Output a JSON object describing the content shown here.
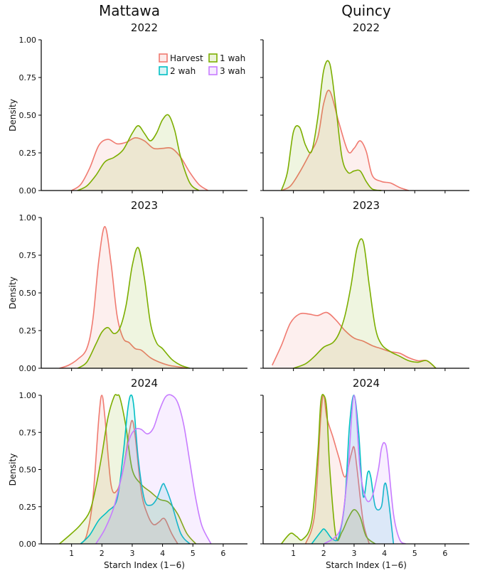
{
  "columns": [
    "Mattawa",
    "Quincy"
  ],
  "colors": {
    "Harvest": "#f07a70",
    "1 wah": "#7cae00",
    "2 wah": "#00bfc4",
    "3 wah": "#c77cff"
  },
  "legend": {
    "placement": "top-right of first panel",
    "entries": [
      "Harvest",
      "1 wah",
      "2 wah",
      "3 wah"
    ]
  },
  "chart_data": [
    {
      "type": "area",
      "title": "2022",
      "column": "Mattawa",
      "xlabel": "",
      "ylabel": "Density",
      "xlim": [
        0,
        6.8
      ],
      "ylim": [
        0,
        1
      ],
      "yticks": [
        "0.00",
        "0.25",
        "0.50",
        "0.75",
        "1.00"
      ],
      "xticks": [],
      "series": [
        {
          "name": "Harvest",
          "x": [
            1.0,
            1.3,
            1.6,
            1.9,
            2.2,
            2.5,
            2.8,
            3.1,
            3.4,
            3.7,
            4.0,
            4.3,
            4.6,
            4.9,
            5.2,
            5.5
          ],
          "y": [
            0.0,
            0.04,
            0.15,
            0.3,
            0.34,
            0.31,
            0.32,
            0.35,
            0.33,
            0.28,
            0.28,
            0.28,
            0.22,
            0.12,
            0.04,
            0.0
          ]
        },
        {
          "name": "1 wah",
          "x": [
            1.2,
            1.5,
            1.8,
            2.1,
            2.4,
            2.7,
            3.0,
            3.2,
            3.4,
            3.6,
            3.8,
            4.0,
            4.2,
            4.4,
            4.6,
            4.9,
            5.2
          ],
          "y": [
            0.0,
            0.03,
            0.1,
            0.19,
            0.22,
            0.27,
            0.38,
            0.43,
            0.38,
            0.33,
            0.38,
            0.47,
            0.5,
            0.4,
            0.22,
            0.05,
            0.0
          ]
        }
      ]
    },
    {
      "type": "area",
      "title": "2022",
      "column": "Quincy",
      "xlabel": "",
      "ylabel": "",
      "xlim": [
        0,
        6.8
      ],
      "ylim": [
        0,
        1
      ],
      "yticks": [],
      "xticks": [],
      "series": [
        {
          "name": "Harvest",
          "x": [
            0.6,
            0.9,
            1.2,
            1.5,
            1.8,
            2.0,
            2.2,
            2.5,
            2.8,
            3.0,
            3.2,
            3.4,
            3.6,
            3.9,
            4.2,
            4.5,
            4.8
          ],
          "y": [
            0.0,
            0.03,
            0.12,
            0.23,
            0.35,
            0.58,
            0.66,
            0.45,
            0.26,
            0.28,
            0.33,
            0.26,
            0.1,
            0.06,
            0.05,
            0.02,
            0.0
          ]
        },
        {
          "name": "1 wah",
          "x": [
            0.6,
            0.8,
            1.0,
            1.2,
            1.4,
            1.6,
            1.8,
            2.0,
            2.2,
            2.4,
            2.6,
            2.8,
            3.0,
            3.2,
            3.4,
            3.6,
            3.9
          ],
          "y": [
            0.0,
            0.12,
            0.39,
            0.42,
            0.3,
            0.26,
            0.48,
            0.8,
            0.84,
            0.55,
            0.22,
            0.12,
            0.13,
            0.13,
            0.06,
            0.01,
            0.0
          ]
        }
      ]
    },
    {
      "type": "area",
      "title": "2023",
      "column": "Mattawa",
      "xlabel": "",
      "ylabel": "Density",
      "xlim": [
        0,
        6.8
      ],
      "ylim": [
        0,
        1
      ],
      "yticks": [
        "0.00",
        "0.25",
        "0.50",
        "0.75",
        "1.00"
      ],
      "xticks": [],
      "series": [
        {
          "name": "Harvest",
          "x": [
            0.6,
            0.9,
            1.2,
            1.5,
            1.7,
            1.9,
            2.1,
            2.3,
            2.5,
            2.7,
            2.9,
            3.1,
            3.3,
            3.6,
            3.9,
            4.2,
            4.5,
            4.8
          ],
          "y": [
            0.0,
            0.02,
            0.06,
            0.13,
            0.32,
            0.72,
            0.94,
            0.7,
            0.35,
            0.2,
            0.17,
            0.13,
            0.12,
            0.07,
            0.04,
            0.02,
            0.01,
            0.0
          ]
        },
        {
          "name": "1 wah",
          "x": [
            1.2,
            1.5,
            1.8,
            2.0,
            2.2,
            2.4,
            2.6,
            2.8,
            3.0,
            3.2,
            3.4,
            3.6,
            3.8,
            4.0,
            4.3,
            4.6,
            4.9
          ],
          "y": [
            0.0,
            0.04,
            0.16,
            0.24,
            0.27,
            0.23,
            0.27,
            0.42,
            0.68,
            0.8,
            0.6,
            0.3,
            0.17,
            0.13,
            0.06,
            0.02,
            0.0
          ]
        }
      ]
    },
    {
      "type": "area",
      "title": "2023",
      "column": "Quincy",
      "xlabel": "",
      "ylabel": "",
      "xlim": [
        0,
        6.8
      ],
      "ylim": [
        0,
        1
      ],
      "yticks": [],
      "xticks": [],
      "series": [
        {
          "name": "Harvest",
          "x": [
            0.3,
            0.6,
            0.9,
            1.2,
            1.5,
            1.8,
            2.1,
            2.4,
            2.7,
            3.0,
            3.3,
            3.6,
            3.9,
            4.2,
            4.5,
            4.8,
            5.1,
            5.4,
            5.7
          ],
          "y": [
            0.02,
            0.15,
            0.3,
            0.36,
            0.36,
            0.35,
            0.37,
            0.32,
            0.25,
            0.2,
            0.18,
            0.15,
            0.13,
            0.11,
            0.1,
            0.07,
            0.05,
            0.05,
            0.0
          ]
        },
        {
          "name": "1 wah",
          "x": [
            1.0,
            1.4,
            1.7,
            2.0,
            2.3,
            2.5,
            2.7,
            2.9,
            3.1,
            3.3,
            3.5,
            3.7,
            3.9,
            4.2,
            4.5,
            4.8,
            5.1,
            5.4,
            5.7
          ],
          "y": [
            0.0,
            0.03,
            0.08,
            0.14,
            0.17,
            0.23,
            0.35,
            0.55,
            0.8,
            0.84,
            0.55,
            0.27,
            0.16,
            0.11,
            0.08,
            0.05,
            0.04,
            0.05,
            0.0
          ]
        }
      ]
    },
    {
      "type": "area",
      "title": "2024",
      "column": "Mattawa",
      "xlabel": "Starch Index (1−6)",
      "ylabel": "Density",
      "xlim": [
        0,
        6.8
      ],
      "ylim": [
        0,
        1
      ],
      "yticks": [
        "0.00",
        "0.25",
        "0.50",
        "0.75",
        "1.00"
      ],
      "xticks": [
        "1",
        "2",
        "3",
        "4",
        "5",
        "6"
      ],
      "series": [
        {
          "name": "Harvest",
          "x": [
            1.3,
            1.5,
            1.7,
            1.9,
            2.0,
            2.1,
            2.3,
            2.5,
            2.7,
            2.9,
            3.0,
            3.1,
            3.3,
            3.5,
            3.7,
            3.9,
            4.0,
            4.1,
            4.3,
            4.5
          ],
          "y": [
            0.0,
            0.06,
            0.3,
            0.85,
            1.0,
            0.85,
            0.4,
            0.36,
            0.5,
            0.75,
            0.83,
            0.72,
            0.35,
            0.2,
            0.13,
            0.15,
            0.17,
            0.16,
            0.07,
            0.0
          ]
        },
        {
          "name": "1 wah",
          "x": [
            0.6,
            1.0,
            1.3,
            1.6,
            1.8,
            2.0,
            2.2,
            2.4,
            2.5,
            2.6,
            2.8,
            3.0,
            3.3,
            3.6,
            3.9,
            4.2,
            4.5,
            4.8,
            5.1
          ],
          "y": [
            0.0,
            0.07,
            0.13,
            0.22,
            0.38,
            0.6,
            0.85,
            0.99,
            1.0,
            0.98,
            0.78,
            0.5,
            0.4,
            0.35,
            0.3,
            0.28,
            0.2,
            0.07,
            0.0
          ]
        },
        {
          "name": "2 wah",
          "x": [
            1.3,
            1.6,
            1.9,
            2.2,
            2.5,
            2.7,
            2.85,
            2.95,
            3.05,
            3.2,
            3.4,
            3.6,
            3.8,
            4.0,
            4.1,
            4.3,
            4.6,
            4.9
          ],
          "y": [
            0.0,
            0.06,
            0.16,
            0.22,
            0.3,
            0.6,
            0.9,
            1.0,
            0.93,
            0.57,
            0.3,
            0.26,
            0.3,
            0.4,
            0.38,
            0.27,
            0.07,
            0.0
          ]
        },
        {
          "name": "3 wah",
          "x": [
            1.8,
            2.1,
            2.4,
            2.7,
            2.9,
            3.1,
            3.3,
            3.5,
            3.7,
            3.9,
            4.1,
            4.3,
            4.5,
            4.7,
            4.9,
            5.1,
            5.3,
            5.6
          ],
          "y": [
            0.0,
            0.1,
            0.25,
            0.5,
            0.7,
            0.77,
            0.77,
            0.74,
            0.78,
            0.9,
            0.99,
            1.0,
            0.95,
            0.8,
            0.55,
            0.3,
            0.12,
            0.0
          ]
        }
      ]
    },
    {
      "type": "area",
      "title": "2024",
      "column": "Quincy",
      "xlabel": "Starch Index (1−6)",
      "ylabel": "",
      "xlim": [
        0,
        6.8
      ],
      "ylim": [
        0,
        1
      ],
      "yticks": [],
      "xticks": [
        "1",
        "2",
        "3",
        "4",
        "5",
        "6"
      ],
      "series": [
        {
          "name": "Harvest",
          "x": [
            1.4,
            1.7,
            1.9,
            2.0,
            2.1,
            2.3,
            2.5,
            2.7,
            2.9,
            3.0,
            3.1,
            3.3,
            3.5
          ],
          "y": [
            0.0,
            0.2,
            0.85,
            1.0,
            0.85,
            0.72,
            0.58,
            0.45,
            0.6,
            0.65,
            0.5,
            0.15,
            0.0
          ]
        },
        {
          "name": "1 wah",
          "x": [
            0.6,
            0.9,
            1.1,
            1.3,
            1.6,
            1.8,
            1.9,
            2.0,
            2.1,
            2.2,
            2.4,
            2.6,
            2.8,
            3.0,
            3.2,
            3.4,
            3.7
          ],
          "y": [
            0.0,
            0.07,
            0.05,
            0.03,
            0.15,
            0.6,
            0.95,
            1.0,
            0.9,
            0.5,
            0.05,
            0.08,
            0.17,
            0.23,
            0.18,
            0.05,
            0.0
          ]
        },
        {
          "name": "2 wah",
          "x": [
            1.6,
            1.9,
            2.0,
            2.1,
            2.3,
            2.5,
            2.7,
            2.85,
            3.0,
            3.15,
            3.3,
            3.45,
            3.55,
            3.7,
            3.9,
            4.0,
            4.1,
            4.3
          ],
          "y": [
            0.0,
            0.08,
            0.1,
            0.08,
            0.03,
            0.05,
            0.3,
            0.8,
            1.0,
            0.75,
            0.32,
            0.48,
            0.45,
            0.25,
            0.25,
            0.4,
            0.35,
            0.0
          ]
        },
        {
          "name": "3 wah",
          "x": [
            2.0,
            2.4,
            2.6,
            2.8,
            3.0,
            3.2,
            3.4,
            3.6,
            3.8,
            3.9,
            4.0,
            4.1,
            4.3,
            4.5,
            4.7
          ],
          "y": [
            0.0,
            0.05,
            0.15,
            0.5,
            1.0,
            0.5,
            0.3,
            0.32,
            0.5,
            0.64,
            0.68,
            0.6,
            0.2,
            0.03,
            0.0
          ]
        }
      ]
    }
  ]
}
